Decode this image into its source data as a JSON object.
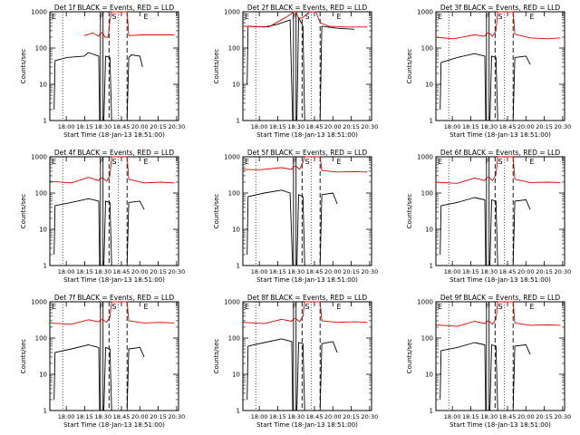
{
  "figure": {
    "background": "#ffffff",
    "events_color": "#000000",
    "lld_color": "#e00000"
  },
  "common": {
    "xlabel": "Start Time (18-Jan-13 18:51:00)",
    "ylabel": "Counts/sec",
    "xticks": [
      "18:00",
      "18:15",
      "18:30",
      "18:45",
      "20:00",
      "20:15",
      "20:30"
    ],
    "yticks": [
      "1",
      "10",
      "100",
      "1000"
    ],
    "ylim": [
      1,
      1000
    ],
    "yscale": "log",
    "xlim": [
      0,
      150
    ],
    "dotted_x": [
      15,
      80
    ],
    "solid_x": [
      59,
      62
    ],
    "dashed_x": [
      69,
      90
    ],
    "markers": [
      {
        "label": "F",
        "x": 60
      },
      {
        "label": "S",
        "x": 75
      },
      {
        "label": "E",
        "x": 112
      }
    ],
    "left_marker": "E"
  },
  "chart_data": [
    {
      "type": "line",
      "title": "Det 1f BLACK = Events, RED = LLD",
      "series": [
        {
          "name": "Events",
          "points": [
            [
              5,
              2
            ],
            [
              6,
              45
            ],
            [
              20,
              55
            ],
            [
              40,
              60
            ],
            [
              45,
              75
            ],
            [
              57,
              60
            ],
            [
              58,
              1
            ],
            [
              63,
              1
            ],
            [
              65,
              60
            ],
            [
              70,
              55
            ],
            [
              72,
              1
            ],
            [
              90,
              1
            ],
            [
              92,
              55
            ],
            [
              95,
              65
            ],
            [
              105,
              60
            ],
            [
              108,
              30
            ]
          ]
        },
        {
          "name": "LLD",
          "points": [
            [
              40,
              220
            ],
            [
              50,
              260
            ],
            [
              57,
              210
            ],
            [
              59,
              260
            ],
            [
              62,
              260
            ],
            [
              64,
              200
            ],
            [
              68,
              200
            ],
            [
              70,
              600
            ],
            [
              72,
              1000
            ],
            [
              90,
              1000
            ],
            [
              92,
              220
            ],
            [
              108,
              230
            ],
            [
              130,
              230
            ],
            [
              145,
              230
            ]
          ]
        }
      ]
    },
    {
      "type": "line",
      "title": "Det 2f BLACK = Events, RED = LLD",
      "series": [
        {
          "name": "Events",
          "points": [
            [
              5,
              10
            ],
            [
              6,
              400
            ],
            [
              25,
              380
            ],
            [
              40,
              450
            ],
            [
              55,
              600
            ],
            [
              58,
              1
            ],
            [
              63,
              1
            ],
            [
              65,
              700
            ],
            [
              70,
              400
            ],
            [
              72,
              1
            ],
            [
              90,
              1
            ],
            [
              92,
              400
            ],
            [
              110,
              350
            ],
            [
              130,
              330
            ]
          ]
        },
        {
          "name": "LLD",
          "points": [
            [
              0,
              400
            ],
            [
              30,
              380
            ],
            [
              50,
              700
            ],
            [
              57,
              900
            ],
            [
              59,
              1000
            ],
            [
              62,
              1000
            ],
            [
              65,
              650
            ],
            [
              70,
              700
            ],
            [
              78,
              1000
            ],
            [
              85,
              1000
            ],
            [
              90,
              500
            ],
            [
              100,
              400
            ],
            [
              120,
              380
            ],
            [
              145,
              380
            ]
          ]
        }
      ]
    },
    {
      "type": "line",
      "title": "Det 3f BLACK = Events, RED = LLD",
      "series": [
        {
          "name": "Events",
          "points": [
            [
              5,
              2
            ],
            [
              6,
              40
            ],
            [
              25,
              55
            ],
            [
              45,
              70
            ],
            [
              57,
              60
            ],
            [
              58,
              1
            ],
            [
              63,
              1
            ],
            [
              65,
              60
            ],
            [
              70,
              55
            ],
            [
              72,
              1
            ],
            [
              90,
              1
            ],
            [
              92,
              55
            ],
            [
              105,
              60
            ],
            [
              110,
              35
            ]
          ]
        },
        {
          "name": "LLD",
          "points": [
            [
              0,
              200
            ],
            [
              20,
              180
            ],
            [
              45,
              230
            ],
            [
              57,
              210
            ],
            [
              59,
              260
            ],
            [
              62,
              260
            ],
            [
              66,
              210
            ],
            [
              70,
              300
            ],
            [
              72,
              1000
            ],
            [
              90,
              1000
            ],
            [
              92,
              240
            ],
            [
              110,
              190
            ],
            [
              130,
              180
            ],
            [
              145,
              190
            ]
          ]
        }
      ]
    },
    {
      "type": "line",
      "title": "Det 4f BLACK = Events, RED = LLD",
      "series": [
        {
          "name": "Events",
          "points": [
            [
              5,
              2
            ],
            [
              6,
              45
            ],
            [
              25,
              55
            ],
            [
              45,
              70
            ],
            [
              57,
              60
            ],
            [
              58,
              1
            ],
            [
              63,
              1
            ],
            [
              65,
              60
            ],
            [
              70,
              55
            ],
            [
              72,
              1
            ],
            [
              90,
              1
            ],
            [
              92,
              55
            ],
            [
              105,
              60
            ],
            [
              110,
              35
            ]
          ]
        },
        {
          "name": "LLD",
          "points": [
            [
              0,
              210
            ],
            [
              25,
              190
            ],
            [
              45,
              270
            ],
            [
              57,
              220
            ],
            [
              59,
              260
            ],
            [
              62,
              260
            ],
            [
              66,
              210
            ],
            [
              70,
              300
            ],
            [
              72,
              1000
            ],
            [
              90,
              1000
            ],
            [
              92,
              240
            ],
            [
              110,
              190
            ],
            [
              130,
              200
            ],
            [
              145,
              190
            ]
          ]
        }
      ]
    },
    {
      "type": "line",
      "title": "Det 5f BLACK = Events, RED = LLD",
      "series": [
        {
          "name": "Events",
          "points": [
            [
              5,
              2
            ],
            [
              6,
              80
            ],
            [
              25,
              100
            ],
            [
              45,
              120
            ],
            [
              55,
              100
            ],
            [
              58,
              1
            ],
            [
              63,
              1
            ],
            [
              65,
              90
            ],
            [
              70,
              80
            ],
            [
              72,
              1
            ],
            [
              90,
              1
            ],
            [
              92,
              90
            ],
            [
              105,
              100
            ],
            [
              110,
              50
            ]
          ]
        },
        {
          "name": "LLD",
          "points": [
            [
              0,
              450
            ],
            [
              20,
              440
            ],
            [
              45,
              500
            ],
            [
              57,
              450
            ],
            [
              59,
              550
            ],
            [
              62,
              550
            ],
            [
              66,
              450
            ],
            [
              70,
              700
            ],
            [
              72,
              1000
            ],
            [
              90,
              1000
            ],
            [
              92,
              420
            ],
            [
              110,
              380
            ],
            [
              130,
              390
            ],
            [
              145,
              380
            ]
          ]
        }
      ]
    },
    {
      "type": "line",
      "title": "Det 6f BLACK = Events, RED = LLD",
      "series": [
        {
          "name": "Events",
          "points": [
            [
              5,
              2
            ],
            [
              6,
              45
            ],
            [
              25,
              55
            ],
            [
              45,
              75
            ],
            [
              57,
              65
            ],
            [
              58,
              1
            ],
            [
              63,
              1
            ],
            [
              65,
              65
            ],
            [
              70,
              60
            ],
            [
              72,
              1
            ],
            [
              90,
              1
            ],
            [
              92,
              60
            ],
            [
              105,
              65
            ],
            [
              110,
              35
            ]
          ]
        },
        {
          "name": "LLD",
          "points": [
            [
              0,
              200
            ],
            [
              25,
              185
            ],
            [
              45,
              260
            ],
            [
              57,
              220
            ],
            [
              59,
              270
            ],
            [
              62,
              270
            ],
            [
              66,
              220
            ],
            [
              70,
              320
            ],
            [
              72,
              1000
            ],
            [
              90,
              1000
            ],
            [
              92,
              240
            ],
            [
              110,
              195
            ],
            [
              130,
              200
            ],
            [
              145,
              195
            ]
          ]
        }
      ]
    },
    {
      "type": "line",
      "title": "Det 7f BLACK = Events, RED = LLD",
      "series": [
        {
          "name": "Events",
          "points": [
            [
              5,
              2
            ],
            [
              6,
              40
            ],
            [
              25,
              50
            ],
            [
              45,
              65
            ],
            [
              57,
              55
            ],
            [
              58,
              1
            ],
            [
              63,
              1
            ],
            [
              65,
              55
            ],
            [
              70,
              50
            ],
            [
              72,
              1
            ],
            [
              90,
              1
            ],
            [
              92,
              50
            ],
            [
              105,
              55
            ],
            [
              110,
              30
            ]
          ]
        },
        {
          "name": "LLD",
          "points": [
            [
              0,
              260
            ],
            [
              25,
              240
            ],
            [
              45,
              320
            ],
            [
              57,
              280
            ],
            [
              59,
              320
            ],
            [
              62,
              320
            ],
            [
              66,
              270
            ],
            [
              70,
              380
            ],
            [
              72,
              1000
            ],
            [
              90,
              1000
            ],
            [
              92,
              300
            ],
            [
              110,
              260
            ],
            [
              130,
              270
            ],
            [
              145,
              260
            ]
          ]
        }
      ]
    },
    {
      "type": "line",
      "title": "Det 8f BLACK = Events, RED = LLD",
      "series": [
        {
          "name": "Events",
          "points": [
            [
              5,
              2
            ],
            [
              6,
              60
            ],
            [
              25,
              75
            ],
            [
              45,
              95
            ],
            [
              57,
              80
            ],
            [
              58,
              1
            ],
            [
              63,
              1
            ],
            [
              65,
              75
            ],
            [
              70,
              70
            ],
            [
              72,
              1
            ],
            [
              90,
              1
            ],
            [
              92,
              70
            ],
            [
              105,
              80
            ],
            [
              110,
              40
            ]
          ]
        },
        {
          "name": "LLD",
          "points": [
            [
              0,
              270
            ],
            [
              25,
              250
            ],
            [
              45,
              330
            ],
            [
              57,
              290
            ],
            [
              59,
              340
            ],
            [
              62,
              340
            ],
            [
              66,
              280
            ],
            [
              70,
              400
            ],
            [
              72,
              1000
            ],
            [
              90,
              1000
            ],
            [
              92,
              300
            ],
            [
              110,
              270
            ],
            [
              130,
              280
            ],
            [
              145,
              270
            ]
          ]
        }
      ]
    },
    {
      "type": "line",
      "title": "Det 9f BLACK = Events, RED = LLD",
      "series": [
        {
          "name": "Events",
          "points": [
            [
              5,
              2
            ],
            [
              6,
              45
            ],
            [
              25,
              55
            ],
            [
              45,
              75
            ],
            [
              57,
              65
            ],
            [
              58,
              1
            ],
            [
              63,
              1
            ],
            [
              65,
              65
            ],
            [
              70,
              60
            ],
            [
              72,
              1
            ],
            [
              90,
              1
            ],
            [
              92,
              60
            ],
            [
              105,
              65
            ],
            [
              110,
              35
            ]
          ]
        },
        {
          "name": "LLD",
          "points": [
            [
              0,
              230
            ],
            [
              25,
              210
            ],
            [
              45,
              290
            ],
            [
              57,
              250
            ],
            [
              59,
              290
            ],
            [
              62,
              290
            ],
            [
              66,
              240
            ],
            [
              70,
              330
            ],
            [
              72,
              1000
            ],
            [
              90,
              1000
            ],
            [
              92,
              260
            ],
            [
              110,
              225
            ],
            [
              130,
              230
            ],
            [
              145,
              225
            ]
          ]
        }
      ]
    }
  ]
}
